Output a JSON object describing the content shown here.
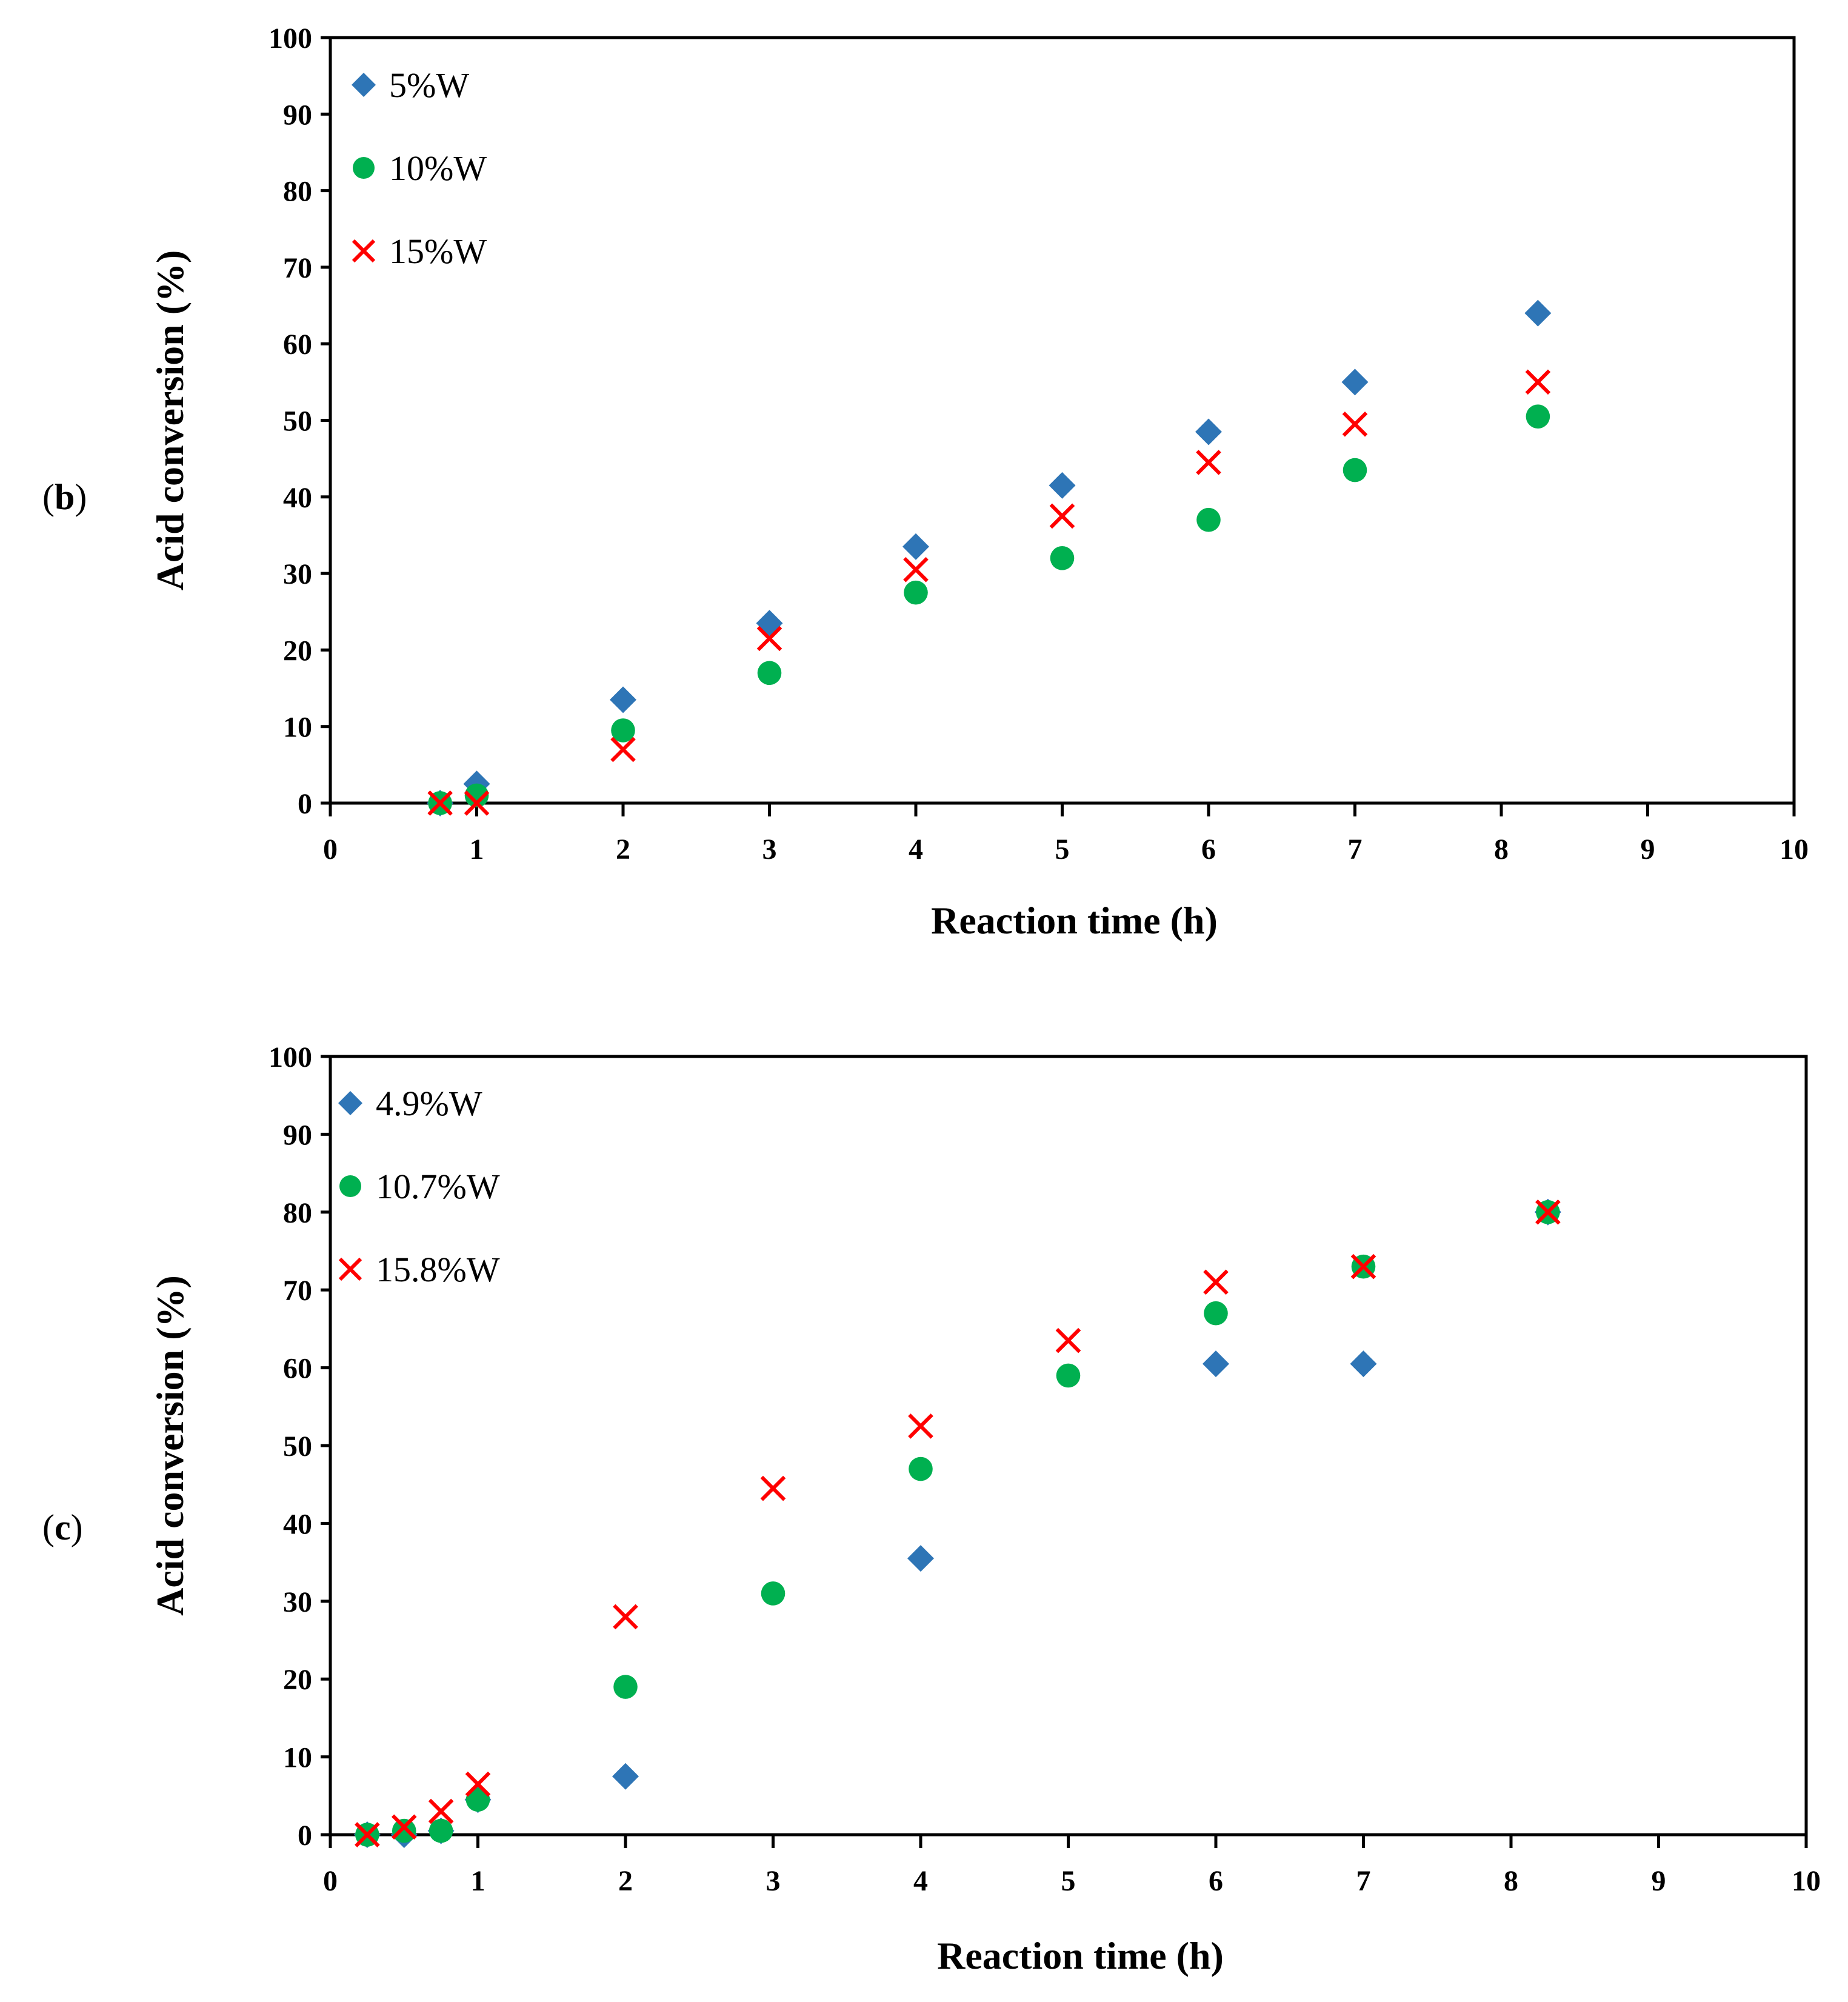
{
  "chart_data": [
    {
      "type": "scatter",
      "panel_label": "b",
      "title": "",
      "xlabel": "Reaction time (h)",
      "ylabel": "Acid conversion (%)",
      "xlim": [
        0,
        10
      ],
      "ylim": [
        0,
        100
      ],
      "xticks": [
        0,
        1,
        2,
        3,
        4,
        5,
        6,
        7,
        8,
        9,
        10
      ],
      "yticks": [
        0,
        10,
        20,
        30,
        40,
        50,
        60,
        70,
        80,
        90,
        100
      ],
      "grid": false,
      "legend_position": "top-left",
      "series": [
        {
          "name": "5%W",
          "marker": "diamond",
          "color": "#2E75B6",
          "x": [
            0.75,
            1,
            2,
            3,
            4,
            5,
            6,
            7,
            8.25
          ],
          "y": [
            0,
            2.5,
            13.5,
            23.5,
            33.5,
            41.5,
            48.5,
            55,
            64
          ]
        },
        {
          "name": "10%W",
          "marker": "circle",
          "color": "#00B050",
          "x": [
            0.75,
            1,
            2,
            3,
            4,
            5,
            6,
            7,
            8.25
          ],
          "y": [
            0,
            1,
            9.5,
            17,
            27.5,
            32,
            37,
            43.5,
            50.5
          ]
        },
        {
          "name": "15%W",
          "marker": "x",
          "color": "#FF0000",
          "x": [
            0.75,
            1,
            2,
            3,
            4,
            5,
            6,
            7,
            8.25
          ],
          "y": [
            0,
            0,
            7,
            21.5,
            30.5,
            37.5,
            44.5,
            49.5,
            55
          ]
        }
      ]
    },
    {
      "type": "scatter",
      "panel_label": "c",
      "title": "",
      "xlabel": "Reaction time (h)",
      "ylabel": "Acid conversion (%)",
      "xlim": [
        0,
        10
      ],
      "ylim": [
        0,
        100
      ],
      "xticks": [
        0,
        1,
        2,
        3,
        4,
        5,
        6,
        7,
        8,
        9,
        10
      ],
      "yticks": [
        0,
        10,
        20,
        30,
        40,
        50,
        60,
        70,
        80,
        90,
        100
      ],
      "grid": false,
      "legend_position": "top-left",
      "series": [
        {
          "name": "4.9%W",
          "marker": "diamond",
          "color": "#2E75B6",
          "x": [
            0.25,
            0.5,
            0.75,
            1,
            2,
            4,
            6,
            7,
            8.25
          ],
          "y": [
            0,
            0,
            0.5,
            4.5,
            7.5,
            35.5,
            60.5,
            60.5,
            80
          ]
        },
        {
          "name": "10.7%W",
          "marker": "circle",
          "color": "#00B050",
          "x": [
            0.25,
            0.5,
            0.75,
            1,
            2,
            3,
            4,
            5,
            6,
            7,
            8.25
          ],
          "y": [
            0,
            0.5,
            0.5,
            4.5,
            19,
            31,
            47,
            59,
            67,
            73,
            80
          ]
        },
        {
          "name": "15.8%W",
          "marker": "x",
          "color": "#FF0000",
          "x": [
            0.25,
            0.5,
            0.75,
            1,
            2,
            3,
            4,
            5,
            6,
            7,
            8.25
          ],
          "y": [
            0,
            1,
            3,
            6.5,
            28,
            44.5,
            52.5,
            63.5,
            71,
            73,
            80
          ]
        }
      ]
    }
  ]
}
